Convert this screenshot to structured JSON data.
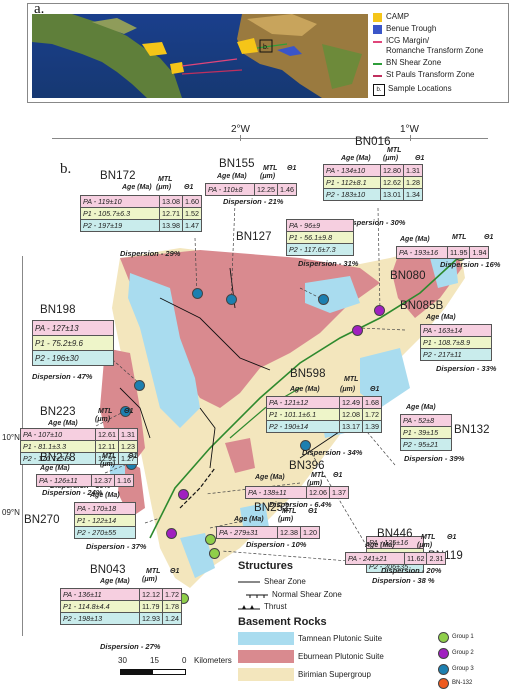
{
  "panel_a": {
    "letter": "a.",
    "inset_label": "b."
  },
  "legend_a": [
    {
      "label": "CAMP",
      "color": "#f5c518"
    },
    {
      "label": "Benue Trough",
      "color": "#3a55c8"
    },
    {
      "label": "ICG Margin/",
      "color": "#e0457a"
    },
    {
      "label": "Romanche Transform Zone",
      "color": ""
    },
    {
      "label": "BN Shear Zone",
      "color": "#2e9e3a"
    },
    {
      "label": "St Pauls Transform Zone",
      "color": "#c0305e"
    },
    {
      "label": "Sample Locations",
      "box": "b."
    }
  ],
  "panel_b": {
    "letter": "b.",
    "lon_labels": [
      "2°W",
      "1°W"
    ],
    "lat_labels": [
      "10°N",
      "09°N"
    ]
  },
  "headers": {
    "age": "Age (Ma)",
    "mtl": "MTL",
    "mtl_unit": "(μm)",
    "theta": "Θ1"
  },
  "samples": [
    {
      "name": "BN172",
      "rows": [
        [
          "PA - 119±10",
          "13.08",
          "1.60"
        ],
        [
          "P1 - 105.7±6.3",
          "12.71",
          "1.52"
        ],
        [
          "P2 - 197±19",
          "13.98",
          "1.47"
        ]
      ],
      "dispersion": "Dispersion - 29%"
    },
    {
      "name": "BN155",
      "rows": [
        [
          "PA - 110±8",
          "12.25",
          "1.46"
        ]
      ],
      "dispersion": "Dispersion - 21%"
    },
    {
      "name": "BN016",
      "rows": [
        [
          "PA - 134±10",
          "12.80",
          "1.31"
        ],
        [
          "P1 - 112±8.1",
          "12.62",
          "1.28"
        ],
        [
          "P2 - 183±10",
          "13.01",
          "1.34"
        ]
      ],
      "dispersion": "Dispersion - 30%"
    },
    {
      "name": "BN127",
      "rows": [
        [
          "PA - 96±9"
        ],
        [
          "P1 - 56.1±9.8"
        ],
        [
          "P2 - 117.6±7.3"
        ]
      ],
      "dispersion": "Dispersion - 31%"
    },
    {
      "name": "BN080",
      "rows": [
        [
          "PA - 193±16",
          "11.95",
          "1.94"
        ]
      ],
      "dispersion": "Dispersion - 16%"
    },
    {
      "name": "BN198",
      "rows": [
        [
          "PA - 127±13"
        ],
        [
          "P1 - 75.2±9.6"
        ],
        [
          "P2 - 196±30"
        ]
      ],
      "dispersion": "Dispersion - 47%"
    },
    {
      "name": "BN085B",
      "rows": [
        [
          "PA - 163±14"
        ],
        [
          "P1 - 108.7±8.9"
        ],
        [
          "P2 - 217±11"
        ]
      ],
      "dispersion": "Dispersion - 33%"
    },
    {
      "name": "BN223",
      "rows": [
        [
          "PA - 107±10",
          "12.61",
          "1.31"
        ],
        [
          "P1 - 81.1±3.3",
          "12.11",
          "1.23"
        ],
        [
          "P2 - 170.7±5.9",
          "12.91",
          "1.27"
        ]
      ],
      "dispersion": "Dispersion - 39%"
    },
    {
      "name": "BN598",
      "rows": [
        [
          "PA - 121±12",
          "12.49",
          "1.68"
        ],
        [
          "P1 - 101.1±6.1",
          "12.08",
          "1.72"
        ],
        [
          "P2 - 190±14",
          "13.17",
          "1.39"
        ]
      ],
      "dispersion": "Dispersion - 34%"
    },
    {
      "name": "BN132",
      "rows": [
        [
          "PA - 52±8"
        ],
        [
          "P1 - 39±15"
        ],
        [
          "P2 - 95±21"
        ]
      ],
      "dispersion": "Dispersion - 39%"
    },
    {
      "name": "BN278",
      "rows": [
        [
          "PA - 126±11",
          "12.37",
          "1.16"
        ]
      ],
      "dispersion": "Dispersion - 24%"
    },
    {
      "name": "BN396",
      "rows": [
        [
          "PA - 138±11",
          "12.06",
          "1.37"
        ]
      ],
      "dispersion": "Dispersion - 6.4%"
    },
    {
      "name": "BN119",
      "rows": [
        [
          "PA - 125±16"
        ],
        [
          "P1 - 96±25"
        ],
        [
          "P2 - 206±35"
        ]
      ],
      "dispersion": "Dispersion - 38 %"
    },
    {
      "name": "BN270",
      "rows": [
        [
          "PA - 170±18"
        ],
        [
          "P1 - 122±14"
        ],
        [
          "P2 - 270±55"
        ]
      ],
      "dispersion": "Dispersion - 37%"
    },
    {
      "name": "BN252",
      "rows": [
        [
          "PA - 279±31",
          "12.38",
          "1.20"
        ]
      ],
      "dispersion": "Dispersion - 10%"
    },
    {
      "name": "BN446",
      "rows": [
        [
          "PA - 241±21",
          "11.62",
          "2.31"
        ]
      ],
      "dispersion": "Dispersion - 20%"
    },
    {
      "name": "BN043",
      "rows": [
        [
          "PA - 136±11",
          "12.12",
          "1.72"
        ],
        [
          "P1 - 114.8±4.4",
          "11.79",
          "1.78"
        ],
        [
          "P2 - 198±13",
          "12.93",
          "1.24"
        ]
      ],
      "dispersion": "Dispersion - 27%"
    }
  ],
  "legend_b": {
    "structures_title": "Structures",
    "structures": [
      "Shear Zone",
      "Normal Shear Zone",
      "Thrust"
    ],
    "basement_title": "Basement Rocks",
    "rocks": [
      {
        "label": "Tamnean Plutonic Suite",
        "color": "#a9dcef"
      },
      {
        "label": "Eburnean Plutonic Suite",
        "color": "#d98a8f"
      },
      {
        "label": "Birimian Supergroup",
        "color": "#f3e6bd"
      }
    ],
    "groups": [
      {
        "label": "Group 1",
        "color": "#8fcf4a"
      },
      {
        "label": "Group 2",
        "color": "#a020c0"
      },
      {
        "label": "Group 3",
        "color": "#1c7fb0"
      },
      {
        "label": "BN-132",
        "color": "#ee5a1e"
      }
    ],
    "scale_ticks": [
      "30",
      "15",
      "0"
    ],
    "scale_unit": "Kilometers"
  }
}
